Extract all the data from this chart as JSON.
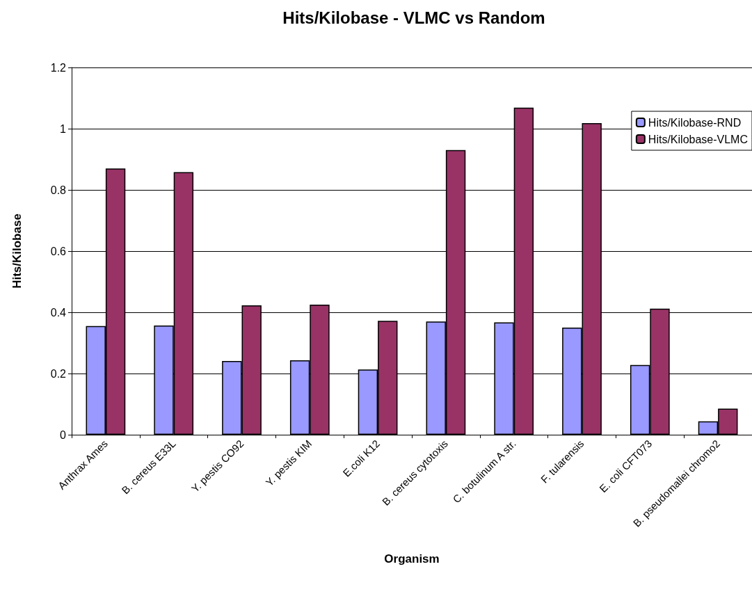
{
  "chart_data": {
    "type": "bar",
    "title": "Hits/Kilobase - VLMC vs Random",
    "xlabel": "Organism",
    "ylabel": "Hits/Kilobase",
    "categories": [
      "Anthrax Ames",
      "B. cereus E33L",
      "Y. pestis CO92",
      "Y. pestis KIM",
      "E.coli K12",
      "B. cereus cytotoxis",
      "C. botulinum A str.",
      "F. tularensis",
      "E. coli CFT073",
      "B. pseudomallei chromo2"
    ],
    "series": [
      {
        "name": "Hits/Kilobase-RND",
        "color": "#9999ff",
        "values": [
          0.355,
          0.357,
          0.241,
          0.243,
          0.213,
          0.37,
          0.367,
          0.35,
          0.228,
          0.044
        ]
      },
      {
        "name": "Hits/Kilobase-VLMC",
        "color": "#993366",
        "values": [
          0.87,
          0.858,
          0.423,
          0.425,
          0.372,
          0.93,
          1.069,
          1.018,
          0.412,
          0.085
        ]
      }
    ],
    "ylim": [
      0,
      1.2
    ],
    "yticks": [
      0,
      0.2,
      0.4,
      0.6,
      0.8,
      1,
      1.2
    ],
    "grid": "y",
    "legend": "top right"
  }
}
